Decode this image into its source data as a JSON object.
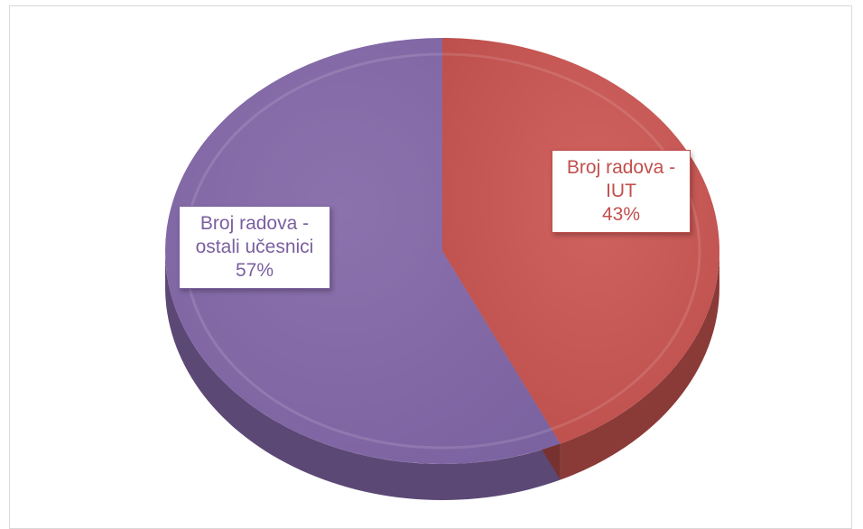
{
  "chart_data": {
    "type": "pie",
    "style": "3d",
    "slices": [
      {
        "name_line1": "Broj radova -",
        "name_line2": "IUT",
        "percent_label": "43%",
        "value": 43,
        "color": "#c0504d"
      },
      {
        "name_line1": "Broj radova -",
        "name_line2": "ostali učesnici",
        "percent_label": "57%",
        "value": 57,
        "color": "#8064a2"
      }
    ]
  }
}
